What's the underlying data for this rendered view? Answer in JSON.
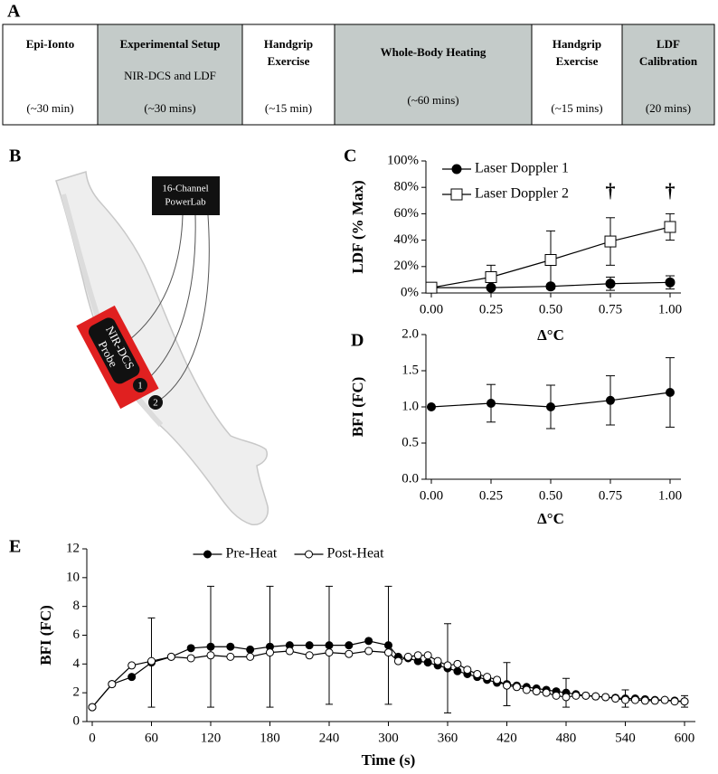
{
  "timeline": {
    "panel": "A",
    "cells": [
      {
        "title": "Epi-Ionto",
        "duration": "(~30 min)",
        "shaded": false
      },
      {
        "title": "Experimental Setup",
        "subtitle": "NIR-DCS and LDF",
        "duration": "(~30 mins)",
        "shaded": true
      },
      {
        "title": [
          "Handgrip",
          "Exercise"
        ],
        "duration": "(~15 min)",
        "shaded": false
      },
      {
        "title": "Whole-Body Heating",
        "duration": "(~60 mins)",
        "shaded": true
      },
      {
        "title": [
          "Handgrip",
          "Exercise"
        ],
        "duration": "(~15 mins)",
        "shaded": false
      },
      {
        "title": [
          "LDF",
          "Calibration"
        ],
        "duration": "(20 mins)",
        "shaded": true
      }
    ]
  },
  "diagram": {
    "panel": "B",
    "device": [
      "16-Channel",
      "PowerLab"
    ],
    "probe": [
      "NIR-DCS",
      "Probe"
    ],
    "sensors": [
      "1",
      "2"
    ]
  },
  "chart_data": [
    {
      "type": "line",
      "panel": "C",
      "y_label": "LDF (% Max)",
      "x_label": "Δ°C",
      "x": [
        0,
        0.25,
        0.5,
        0.75,
        1.0
      ],
      "series": [
        {
          "name": "Laser Doppler 1",
          "color": "#000000",
          "marker": "circle",
          "marker_fill": "#000000",
          "values": [
            4,
            4,
            5,
            7,
            8
          ],
          "errors": [
            1,
            1,
            1,
            5,
            5
          ]
        },
        {
          "name": "Laser Doppler 2",
          "color": "#000000",
          "marker": "square",
          "marker_fill": "#ffffff",
          "values": [
            4,
            12,
            25,
            39,
            50
          ],
          "errors": [
            0,
            9,
            22,
            18,
            10
          ]
        }
      ],
      "annotations": [
        {
          "text": "†",
          "x": 0.75,
          "y": 76
        },
        {
          "text": "†",
          "x": 1.0,
          "y": 76
        }
      ],
      "xlim": [
        0,
        1
      ],
      "ylim": [
        0,
        100
      ],
      "xticks": [
        {
          "value": 0,
          "label": "0.00"
        },
        {
          "value": 0.25,
          "label": "0.25"
        },
        {
          "value": 0.5,
          "label": "0.50"
        },
        {
          "value": 0.75,
          "label": "0.75"
        },
        {
          "value": 1,
          "label": "1.00"
        }
      ],
      "yticks": [
        {
          "value": 0,
          "label": "0%"
        },
        {
          "value": 20,
          "label": "20%"
        },
        {
          "value": 40,
          "label": "40%"
        },
        {
          "value": 60,
          "label": "60%"
        },
        {
          "value": 80,
          "label": "80%"
        },
        {
          "value": 100,
          "label": "100%"
        }
      ],
      "legend": "upper left"
    },
    {
      "type": "line",
      "panel": "D",
      "y_label": "BFI (FC)",
      "x_label": "Δ°C",
      "x": [
        0,
        0.25,
        0.5,
        0.75,
        1.0
      ],
      "series": [
        {
          "color": "#000000",
          "marker": "circle",
          "marker_fill": "#000000",
          "values": [
            1.0,
            1.05,
            1.0,
            1.09,
            1.2
          ],
          "errors": [
            0,
            0.26,
            0.3,
            0.34,
            0.48
          ]
        }
      ],
      "xlim": [
        0,
        1
      ],
      "ylim": [
        0,
        2
      ],
      "xticks": [
        {
          "value": 0,
          "label": "0.00"
        },
        {
          "value": 0.25,
          "label": "0.25"
        },
        {
          "value": 0.5,
          "label": "0.50"
        },
        {
          "value": 0.75,
          "label": "0.75"
        },
        {
          "value": 1,
          "label": "1.00"
        }
      ],
      "yticks": [
        {
          "value": 0,
          "label": "0.0"
        },
        {
          "value": 0.5,
          "label": "0.5"
        },
        {
          "value": 1,
          "label": "1.0"
        },
        {
          "value": 1.5,
          "label": "1.5"
        },
        {
          "value": 2,
          "label": "2.0"
        }
      ]
    },
    {
      "type": "line",
      "panel": "E",
      "y_label": "BFI (FC)",
      "x_label": "Time (s)",
      "x": [
        0,
        20,
        40,
        60,
        80,
        100,
        120,
        140,
        160,
        180,
        200,
        220,
        240,
        260,
        280,
        300,
        310,
        320,
        330,
        340,
        350,
        360,
        370,
        380,
        390,
        400,
        410,
        420,
        430,
        440,
        450,
        460,
        470,
        480,
        490,
        500,
        510,
        520,
        530,
        540,
        550,
        560,
        570,
        580,
        590,
        600
      ],
      "series": [
        {
          "name": "Pre-Heat",
          "color": "#000000",
          "marker": "circle",
          "marker_fill": "#000000",
          "values": [
            1.0,
            2.6,
            3.1,
            4.1,
            4.5,
            5.1,
            5.2,
            5.2,
            5.0,
            5.2,
            5.3,
            5.3,
            5.3,
            5.3,
            5.6,
            5.3,
            4.5,
            4.4,
            4.2,
            4.1,
            3.9,
            3.7,
            3.5,
            3.3,
            3.1,
            2.9,
            2.7,
            2.6,
            2.5,
            2.4,
            2.3,
            2.2,
            2.1,
            2.0,
            1.9,
            1.8,
            1.75,
            1.7,
            1.65,
            1.6,
            1.6,
            1.55,
            1.5,
            1.5,
            1.45,
            1.4
          ],
          "errors": [
            null,
            null,
            null,
            3.1,
            null,
            null,
            4.2,
            null,
            null,
            4.2,
            null,
            null,
            4.1,
            null,
            null,
            4.1,
            null,
            null,
            null,
            null,
            null,
            3.1,
            null,
            null,
            null,
            null,
            null,
            1.5,
            null,
            null,
            null,
            null,
            null,
            1.0,
            null,
            null,
            null,
            null,
            null,
            0.6,
            null,
            null,
            null,
            null,
            null,
            0.4
          ]
        },
        {
          "name": "Post-Heat",
          "color": "#000000",
          "marker": "circle",
          "marker_fill": "#ffffff",
          "values": [
            1.0,
            2.6,
            3.9,
            4.2,
            4.5,
            4.4,
            4.6,
            4.5,
            4.5,
            4.8,
            4.9,
            4.6,
            4.8,
            4.7,
            4.9,
            4.8,
            4.2,
            4.5,
            4.6,
            4.6,
            4.2,
            3.9,
            4.0,
            3.6,
            3.3,
            3.1,
            2.9,
            2.5,
            2.4,
            2.2,
            2.1,
            2.0,
            1.8,
            1.7,
            1.8,
            1.8,
            1.75,
            1.7,
            1.6,
            1.5,
            1.5,
            1.45,
            1.45,
            1.5,
            1.4,
            1.4
          ]
        }
      ],
      "xlim": [
        0,
        600
      ],
      "ylim": [
        0,
        12
      ],
      "xticks": [
        0,
        60,
        120,
        180,
        240,
        300,
        360,
        420,
        480,
        540,
        600
      ],
      "yticks": [
        0,
        2,
        4,
        6,
        8,
        10,
        12
      ],
      "legend": "upper center"
    }
  ]
}
